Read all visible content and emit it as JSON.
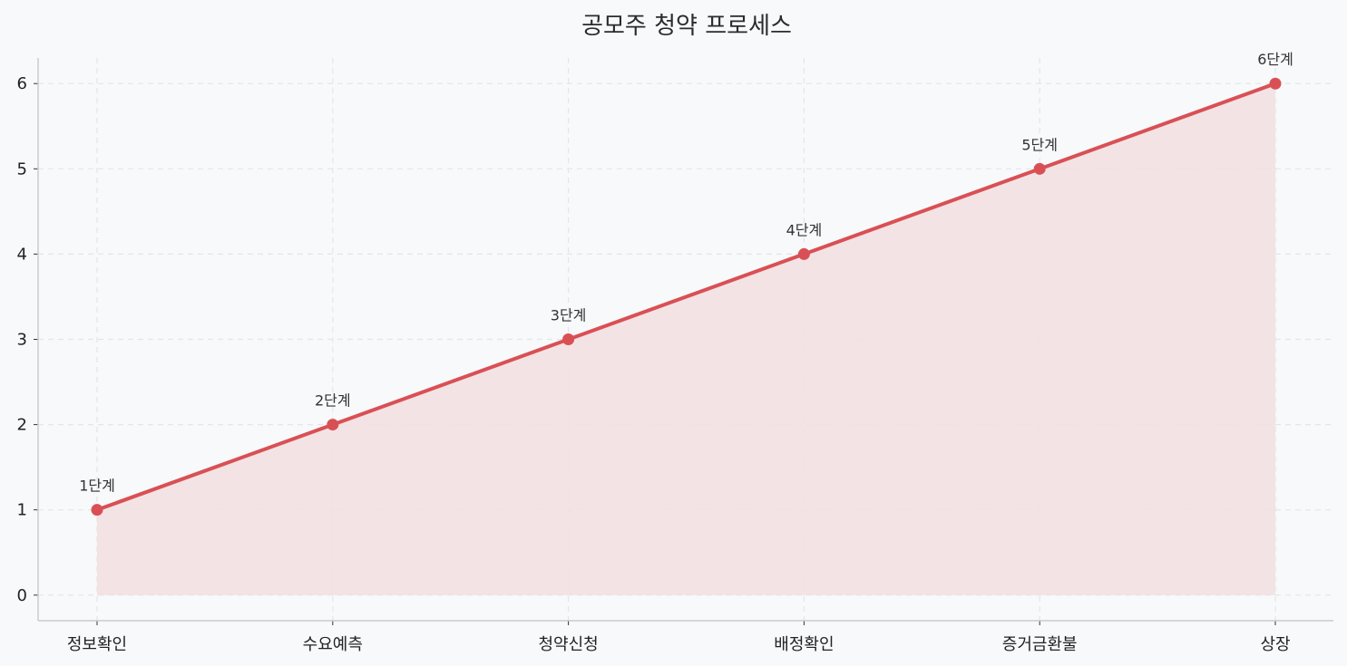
{
  "chart_data": {
    "type": "area",
    "title": "공모주 청약 프로세스",
    "xlabel": "",
    "ylabel": "",
    "categories": [
      "정보확인",
      "수요예측",
      "청약신청",
      "배정확인",
      "증거금환불",
      "상장"
    ],
    "series": [
      {
        "values": [
          1,
          2,
          3,
          4,
          5,
          6
        ]
      }
    ],
    "data_labels": [
      "1단계",
      "2단계",
      "3단계",
      "4단계",
      "5단계",
      "6단계"
    ],
    "yticks": [
      0,
      1,
      2,
      3,
      4,
      5,
      6
    ],
    "ylim": [
      -0.3,
      6.3
    ],
    "grid": true,
    "colors": {
      "line": "#d95054",
      "fill": "#f2dfe0",
      "grid": "#e3e6ea",
      "axis": "#c8ccd2",
      "background": "#f7f9fb"
    }
  }
}
